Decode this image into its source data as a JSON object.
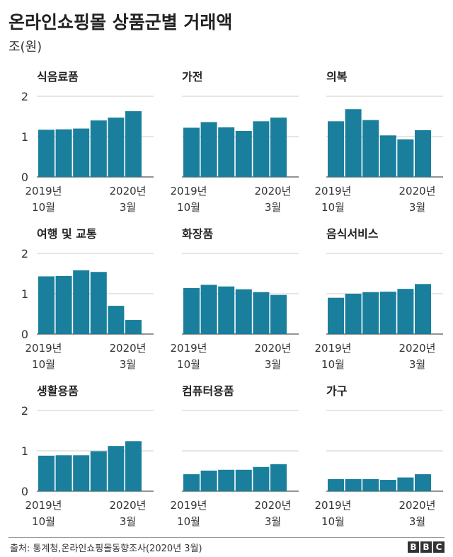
{
  "title": "온라인쇼핑몰 상품군별 거래액",
  "unit": "조(원)",
  "source": "출처: 통계청,온라인쇼핑몰동향조사(2020년 3월)",
  "logo": [
    "B",
    "B",
    "C"
  ],
  "colors": {
    "bar": "#1a7f9c",
    "grid": "#cccccc",
    "axis": "#555555"
  },
  "chart_data": [
    {
      "type": "bar",
      "title": "식음료품",
      "ylim": [
        0,
        2
      ],
      "yticks": [
        0,
        1,
        2
      ],
      "categories": [
        "2019년 10월",
        "2019년 11월",
        "2019년 12월",
        "2020년 1월",
        "2020년 2월",
        "2020년 3월"
      ],
      "xtick_labels": [
        [
          "2019년",
          "10월"
        ],
        [
          "2020년",
          "3월"
        ]
      ],
      "values": [
        1.17,
        1.18,
        1.2,
        1.4,
        1.47,
        1.63
      ]
    },
    {
      "type": "bar",
      "title": "가전",
      "ylim": [
        0,
        2
      ],
      "yticks": [
        0,
        1,
        2
      ],
      "categories": [
        "2019년 10월",
        "2019년 11월",
        "2019년 12월",
        "2020년 1월",
        "2020년 2월",
        "2020년 3월"
      ],
      "xtick_labels": [
        [
          "2019년",
          "10월"
        ],
        [
          "2020년",
          "3월"
        ]
      ],
      "values": [
        1.22,
        1.36,
        1.23,
        1.14,
        1.38,
        1.47
      ]
    },
    {
      "type": "bar",
      "title": "의복",
      "ylim": [
        0,
        2
      ],
      "yticks": [
        0,
        1,
        2
      ],
      "categories": [
        "2019년 10월",
        "2019년 11월",
        "2019년 12월",
        "2020년 1월",
        "2020년 2월",
        "2020년 3월"
      ],
      "xtick_labels": [
        [
          "2019년",
          "10월"
        ],
        [
          "2020년",
          "3월"
        ]
      ],
      "values": [
        1.38,
        1.68,
        1.41,
        1.03,
        0.93,
        1.16
      ]
    },
    {
      "type": "bar",
      "title": "여행 및 교통",
      "ylim": [
        0,
        2
      ],
      "yticks": [
        0,
        1,
        2
      ],
      "categories": [
        "2019년 10월",
        "2019년 11월",
        "2019년 12월",
        "2020년 1월",
        "2020년 2월",
        "2020년 3월"
      ],
      "xtick_labels": [
        [
          "2019년",
          "10월"
        ],
        [
          "2020년",
          "3월"
        ]
      ],
      "values": [
        1.43,
        1.44,
        1.58,
        1.54,
        0.7,
        0.35
      ]
    },
    {
      "type": "bar",
      "title": "화장품",
      "ylim": [
        0,
        2
      ],
      "yticks": [
        0,
        1,
        2
      ],
      "categories": [
        "2019년 10월",
        "2019년 11월",
        "2019년 12월",
        "2020년 1월",
        "2020년 2월",
        "2020년 3월"
      ],
      "xtick_labels": [
        [
          "2019년",
          "10월"
        ],
        [
          "2020년",
          "3월"
        ]
      ],
      "values": [
        1.14,
        1.22,
        1.18,
        1.11,
        1.04,
        0.97
      ]
    },
    {
      "type": "bar",
      "title": "음식서비스",
      "ylim": [
        0,
        2
      ],
      "yticks": [
        0,
        1,
        2
      ],
      "categories": [
        "2019년 10월",
        "2019년 11월",
        "2019년 12월",
        "2020년 1월",
        "2020년 2월",
        "2020년 3월"
      ],
      "xtick_labels": [
        [
          "2019년",
          "10월"
        ],
        [
          "2020년",
          "3월"
        ]
      ],
      "values": [
        0.9,
        1.0,
        1.04,
        1.05,
        1.12,
        1.24
      ]
    },
    {
      "type": "bar",
      "title": "생활용품",
      "ylim": [
        0,
        2
      ],
      "yticks": [
        0,
        1,
        2
      ],
      "categories": [
        "2019년 10월",
        "2019년 11월",
        "2019년 12월",
        "2020년 1월",
        "2020년 2월",
        "2020년 3월"
      ],
      "xtick_labels": [
        [
          "2019년",
          "10월"
        ],
        [
          "2020년",
          "3월"
        ]
      ],
      "values": [
        0.88,
        0.89,
        0.89,
        0.99,
        1.12,
        1.24
      ]
    },
    {
      "type": "bar",
      "title": "컴퓨터용품",
      "ylim": [
        0,
        2
      ],
      "yticks": [
        0,
        1,
        2
      ],
      "categories": [
        "2019년 10월",
        "2019년 11월",
        "2019년 12월",
        "2020년 1월",
        "2020년 2월",
        "2020년 3월"
      ],
      "xtick_labels": [
        [
          "2019년",
          "10월"
        ],
        [
          "2020년",
          "3월"
        ]
      ],
      "values": [
        0.42,
        0.51,
        0.53,
        0.53,
        0.6,
        0.67
      ]
    },
    {
      "type": "bar",
      "title": "가구",
      "ylim": [
        0,
        2
      ],
      "yticks": [
        0,
        1,
        2
      ],
      "categories": [
        "2019년 10월",
        "2019년 11월",
        "2019년 12월",
        "2020년 1월",
        "2020년 2월",
        "2020년 3월"
      ],
      "xtick_labels": [
        [
          "2019년",
          "10월"
        ],
        [
          "2020년",
          "3월"
        ]
      ],
      "values": [
        0.3,
        0.3,
        0.3,
        0.28,
        0.34,
        0.42
      ]
    }
  ]
}
